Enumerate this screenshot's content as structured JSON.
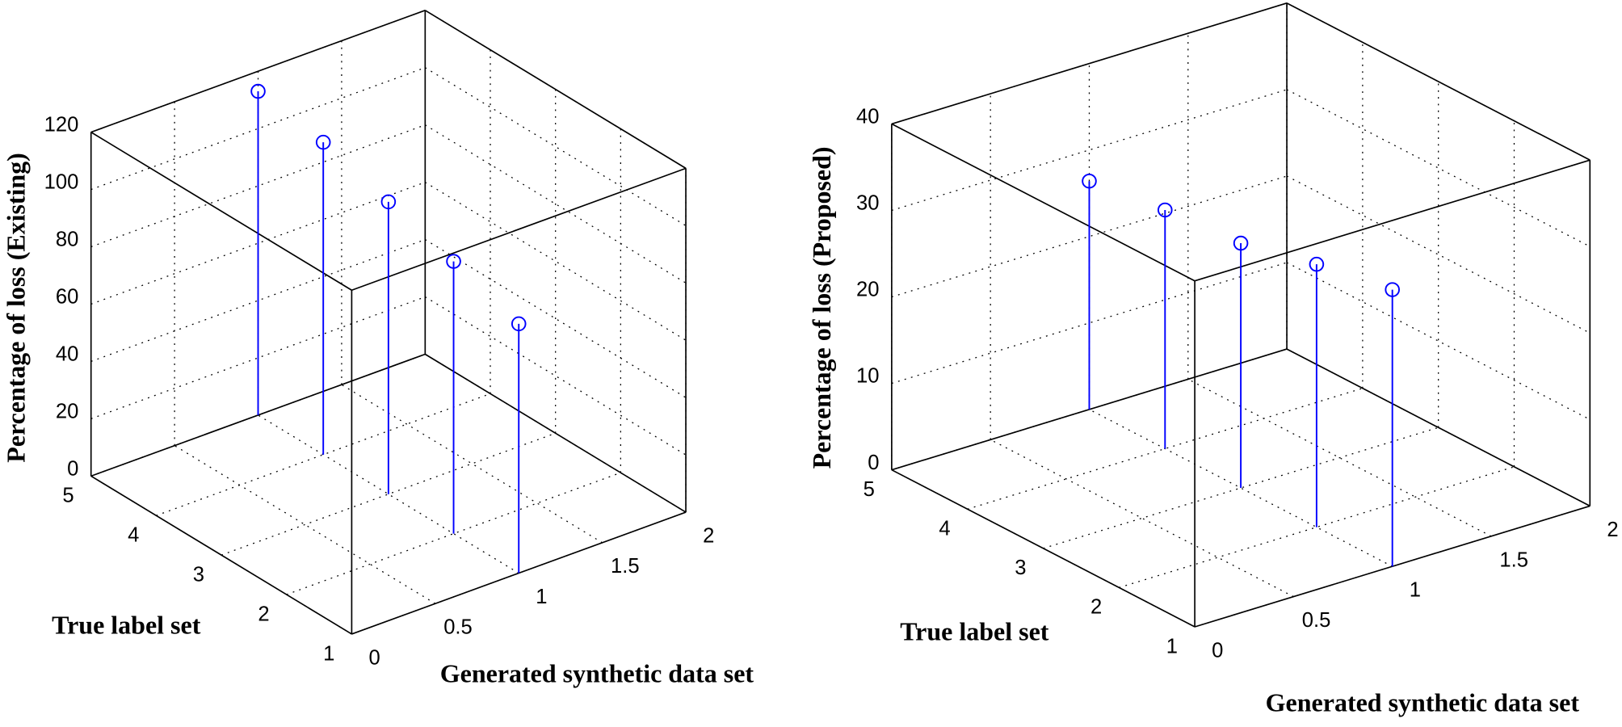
{
  "chart_data": [
    {
      "type": "stem3",
      "xlabel": "Generated synthetic data set",
      "ylabel": "True label set",
      "zlabel": "Percentage of loss (Existing)",
      "series": [
        {
          "x": [
            1,
            1,
            1,
            1,
            1
          ],
          "y": [
            1,
            2,
            3,
            4,
            5
          ],
          "values": [
            87,
            95,
            102,
            109,
            113
          ],
          "color": "#0000ff"
        }
      ],
      "xlim": [
        0,
        2
      ],
      "xticks": [
        0,
        0.5,
        1,
        1.5,
        2
      ],
      "ylim": [
        1,
        5
      ],
      "yticks": [
        1,
        2,
        3,
        4,
        5
      ],
      "zlim": [
        0,
        120
      ],
      "zticks": [
        0,
        20,
        40,
        60,
        80,
        100,
        120
      ],
      "grid": true
    },
    {
      "type": "stem3",
      "xlabel": "Generated synthetic data set",
      "ylabel": "True label set",
      "zlabel": "Percentage of loss (Proposed)",
      "series": [
        {
          "x": [
            1,
            1,
            1,
            1,
            1
          ],
          "y": [
            1,
            2,
            3,
            4,
            5
          ],
          "values": [
            32,
            30.4,
            28.3,
            27.6,
            26.4
          ],
          "color": "#0000ff"
        }
      ],
      "xlim": [
        0,
        2
      ],
      "xticks": [
        0,
        0.5,
        1,
        1.5,
        2
      ],
      "ylim": [
        1,
        5
      ],
      "yticks": [
        1,
        2,
        3,
        4,
        5
      ],
      "zlim": [
        0,
        40
      ],
      "zticks": [
        0,
        10,
        20,
        30,
        40
      ],
      "grid": true
    }
  ]
}
